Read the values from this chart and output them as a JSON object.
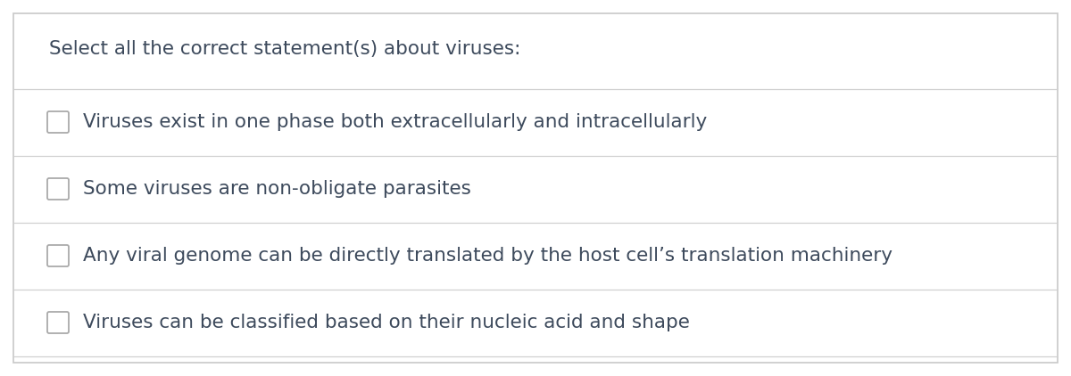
{
  "title": "Select all the correct statement(s) about viruses:",
  "options": [
    "Viruses exist in one phase both extracellularly and intracellularly",
    "Some viruses are non-obligate parasites",
    "Any viral genome can be directly translated by the host cell’s translation machinery",
    "Viruses can be classified based on their nucleic acid and shape"
  ],
  "bg_color": "#ffffff",
  "text_color": "#3d4a5c",
  "title_fontsize": 15.5,
  "option_fontsize": 15.5,
  "divider_color": "#d0d0d0",
  "checkbox_edge_color": "#aaaaaa",
  "outer_border_color": "#c8c8c8"
}
